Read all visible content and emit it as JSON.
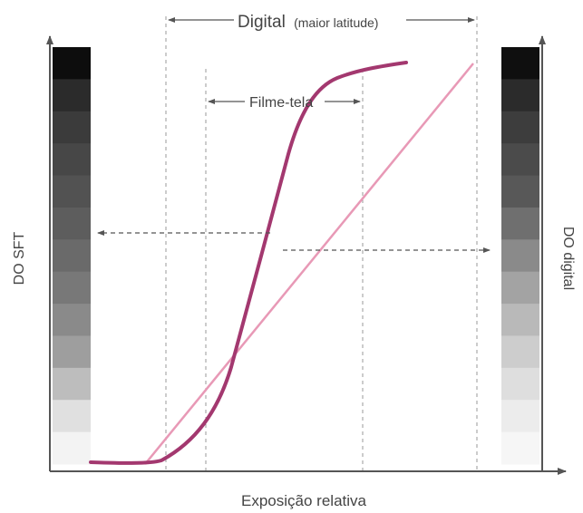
{
  "labels": {
    "digital": "Digital",
    "digital_note": "(maior latitude)",
    "film": "Filme-tela",
    "y_left": "DO SFT",
    "y_right": "DO digital",
    "x_axis": "Exposição relativa"
  },
  "colors": {
    "film_curve": "#a3386f",
    "digital_line": "#e899b6",
    "axis": "#555555",
    "guide": "#9a9a9a"
  },
  "grayscale_left": [
    "#0d0d0d",
    "#2b2b2b",
    "#3b3b3b",
    "#474747",
    "#525252",
    "#5d5d5d",
    "#6a6a6a",
    "#787878",
    "#8a8a8a",
    "#9e9e9e",
    "#bdbdbd",
    "#e0e0e0",
    "#f3f3f3"
  ],
  "grayscale_right": [
    "#0f0f0f",
    "#2b2b2b",
    "#3d3d3d",
    "#4b4b4b",
    "#585858",
    "#6f6f6f",
    "#8a8a8a",
    "#a3a3a3",
    "#b9b9b9",
    "#cdcdcd",
    "#dedede",
    "#ececec",
    "#f6f6f6"
  ]
}
